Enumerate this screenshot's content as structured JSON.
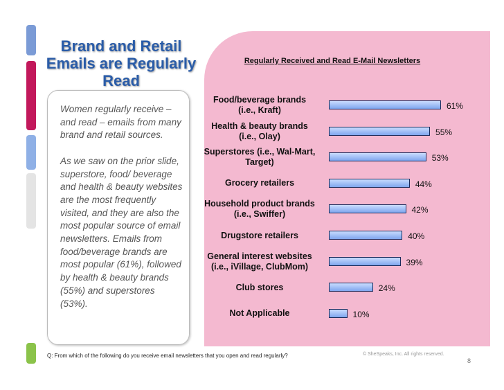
{
  "title": "Brand and Retail Emails are Regularly Read",
  "body": [
    "Women regularly receive – and read – emails from many brand and retail sources.",
    "As we saw on the prior slide, superstore, food/ beverage and health & beauty websites are the most frequently visited, and they are also the most popular source of email newsletters. Emails from food/beverage brands are most popular (61%), followed by health & beauty brands (55%) and superstores (53%)."
  ],
  "chart_data": {
    "type": "bar",
    "orientation": "horizontal",
    "title": "Regularly Received and Read E-Mail Newsletters",
    "categories": [
      "Food/beverage brands\n(i.e., Kraft)",
      "Health & beauty brands\n(i.e., Olay)",
      "Superstores (i.e., Wal-Mart,\nTarget)",
      "Grocery retailers",
      "Household product brands\n(i.e., Swiffer)",
      "Drugstore retailers",
      "General interest websites\n(i.e., iVillage, ClubMom)",
      "Club stores",
      "Not Applicable"
    ],
    "values": [
      61,
      55,
      53,
      44,
      42,
      40,
      39,
      24,
      10
    ],
    "value_labels": [
      "61%",
      "55%",
      "53%",
      "44%",
      "42%",
      "40%",
      "39%",
      "24%",
      "10%"
    ]
  },
  "footnote": "Q: From which of the following do you receive email newsletters that you open and read regularly?",
  "copyright": "© SheSpeaks, Inc. All rights reserved.",
  "page_number": "8"
}
